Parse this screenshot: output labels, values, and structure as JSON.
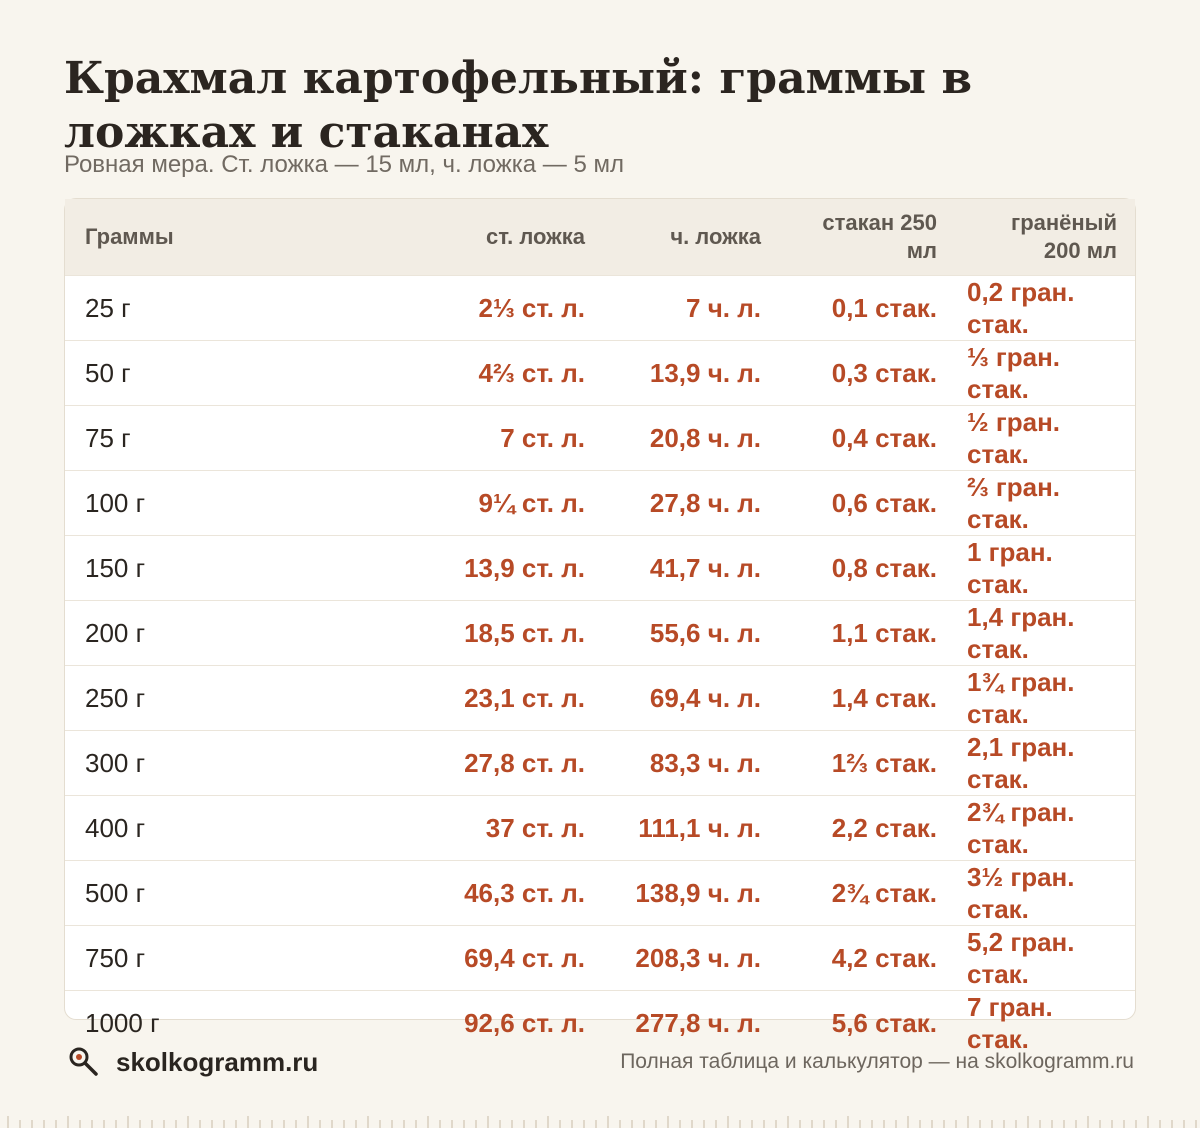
{
  "title": "Крахмал картофельный: граммы в ложках и стаканах",
  "subtitle": "Ровная мера. Ст. ложка — 15 мл, ч. ложка — 5 мл",
  "table": {
    "headers": [
      "Граммы",
      "ст. ложка",
      "ч. ложка",
      "стакан 250 мл",
      "гранёный 200 мл"
    ],
    "rows": [
      [
        "25 г",
        "2⅓ ст. л.",
        "7 ч. л.",
        "0,1 стак.",
        "0,2 гран. стак."
      ],
      [
        "50 г",
        "4⅔ ст. л.",
        "13,9 ч. л.",
        "0,3 стак.",
        "⅓ гран. стак."
      ],
      [
        "75 г",
        "7 ст. л.",
        "20,8 ч. л.",
        "0,4 стак.",
        "½ гран. стак."
      ],
      [
        "100 г",
        "9¼ ст. л.",
        "27,8 ч. л.",
        "0,6 стак.",
        "⅔ гран. стак."
      ],
      [
        "150 г",
        "13,9 ст. л.",
        "41,7 ч. л.",
        "0,8 стак.",
        "1 гран. стак."
      ],
      [
        "200 г",
        "18,5 ст. л.",
        "55,6 ч. л.",
        "1,1 стак.",
        "1,4 гран. стак."
      ],
      [
        "250 г",
        "23,1 ст. л.",
        "69,4 ч. л.",
        "1,4 стак.",
        "1¾ гран. стак."
      ],
      [
        "300 г",
        "27,8 ст. л.",
        "83,3 ч. л.",
        "1⅔ стак.",
        "2,1 гран. стак."
      ],
      [
        "400 г",
        "37 ст. л.",
        "111,1 ч. л.",
        "2,2 стак.",
        "2¾ гран. стак."
      ],
      [
        "500 г",
        "46,3 ст. л.",
        "138,9 ч. л.",
        "2¾ стак.",
        "3½ гран. стак."
      ],
      [
        "750 г",
        "69,4 ст. л.",
        "208,3 ч. л.",
        "4,2 стак.",
        "5,2 гран. стак."
      ],
      [
        "1000 г",
        "92,6 ст. л.",
        "277,8 ч. л.",
        "5,6 стак.",
        "7 гран. стак."
      ]
    ]
  },
  "footer": {
    "site": "skolkogramm.ru",
    "logo_icon": "magnifier-icon",
    "note": "Полная таблица и калькулятор — на skolkogramm.ru"
  },
  "colors": {
    "background": "#f8f5ee",
    "accent": "#b74a26",
    "header_bg": "#f2ede4"
  }
}
